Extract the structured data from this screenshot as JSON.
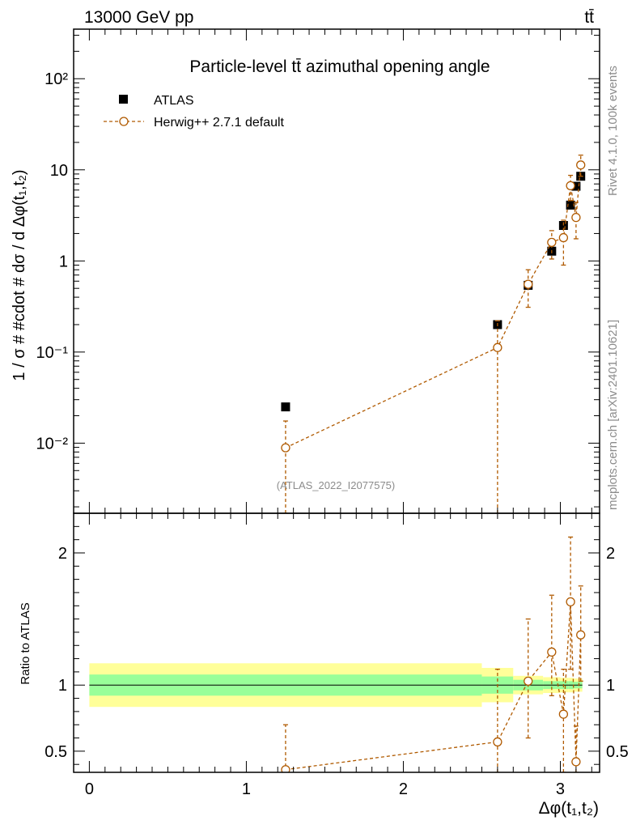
{
  "header": {
    "energy_label": "13000 GeV pp",
    "process_label": "tt̄"
  },
  "side_labels": {
    "rivet": "Rivet 4.1.0,  100k events",
    "source": "mcplots.cern.ch [arXiv:2401.10621]"
  },
  "colors": {
    "herwig": "#b05a00",
    "data": "#000000",
    "band_inner": "#99ff99",
    "band_outer": "#ffff99"
  },
  "chart_data": [
    {
      "type": "scatter",
      "title": "Particle-level tt̄ azimuthal opening angle",
      "analysis_id": "(ATLAS_2022_I2077575)",
      "ylabel": "1 / σ # #cdot # dσ / d Δφ(t₁,t₂)",
      "xlabel": "Δφ(t₁,t₂)",
      "yscale": "log",
      "xlim": [
        -0.1,
        3.25
      ],
      "ylim": [
        0.0017,
        350
      ],
      "y_ticks": [
        {
          "value": 0.01,
          "label": "10⁻²"
        },
        {
          "value": 0.1,
          "label": "10⁻¹"
        },
        {
          "value": 1,
          "label": "1"
        },
        {
          "value": 10,
          "label": "10"
        },
        {
          "value": 100,
          "label": "10²"
        }
      ],
      "legend": {
        "position": "top-left",
        "entries": [
          "ATLAS",
          "Herwig++ 2.7.1 default"
        ]
      },
      "series": [
        {
          "name": "ATLAS",
          "marker": "filled-square",
          "points": [
            {
              "x": 1.25,
              "y": 0.025
            },
            {
              "x": 2.6,
              "y": 0.2
            },
            {
              "x": 2.795,
              "y": 0.54
            },
            {
              "x": 2.945,
              "y": 1.28
            },
            {
              "x": 3.02,
              "y": 2.45
            },
            {
              "x": 3.065,
              "y": 4.1
            },
            {
              "x": 3.1,
              "y": 6.6
            },
            {
              "x": 3.13,
              "y": 8.5
            }
          ]
        },
        {
          "name": "Herwig++ 2.7.1 default",
          "marker": "open-circle",
          "line": "dashed",
          "points": [
            {
              "x": 1.25,
              "y": 0.0089,
              "ylo": 0.0017,
              "yhi": 0.0175
            },
            {
              "x": 2.6,
              "y": 0.112,
              "ylo": 0.0017,
              "yhi": 0.22
            },
            {
              "x": 2.795,
              "y": 0.555,
              "ylo": 0.31,
              "yhi": 0.8
            },
            {
              "x": 2.945,
              "y": 1.6,
              "ylo": 1.05,
              "yhi": 2.15
            },
            {
              "x": 3.02,
              "y": 1.8,
              "ylo": 0.9,
              "yhi": 2.8
            },
            {
              "x": 3.065,
              "y": 6.7,
              "ylo": 4.6,
              "yhi": 8.7
            },
            {
              "x": 3.1,
              "y": 3.0,
              "ylo": 1.75,
              "yhi": 4.4
            },
            {
              "x": 3.13,
              "y": 11.3,
              "ylo": 8.5,
              "yhi": 14.5
            }
          ]
        }
      ]
    },
    {
      "type": "scatter",
      "title": "",
      "ylabel": "Ratio to ATLAS",
      "xlabel": "Δφ(t₁,t₂)",
      "xlim": [
        -0.1,
        3.25
      ],
      "ylim": [
        0.34,
        2.3
      ],
      "x_ticks": [
        {
          "value": 0,
          "label": "0"
        },
        {
          "value": 1,
          "label": "1"
        },
        {
          "value": 2,
          "label": "2"
        },
        {
          "value": 3,
          "label": "3"
        }
      ],
      "y_ticks": [
        {
          "value": 0.5,
          "label": "0.5"
        },
        {
          "value": 1,
          "label": "1"
        },
        {
          "value": 2,
          "label": "2"
        }
      ],
      "reference_line": 1,
      "uncertainty_bands": [
        {
          "x0": 0.0,
          "x1": 2.5,
          "inner": [
            0.92,
            1.08
          ],
          "outer": [
            0.835,
            1.165
          ]
        },
        {
          "x0": 2.5,
          "x1": 2.7,
          "inner": [
            0.935,
            1.065
          ],
          "outer": [
            0.87,
            1.13
          ]
        },
        {
          "x0": 2.7,
          "x1": 2.89,
          "inner": [
            0.96,
            1.04
          ],
          "outer": [
            0.93,
            1.07
          ]
        },
        {
          "x0": 2.89,
          "x1": 3.0,
          "inner": [
            0.97,
            1.03
          ],
          "outer": [
            0.94,
            1.06
          ]
        },
        {
          "x0": 3.0,
          "x1": 3.05,
          "inner": [
            0.97,
            1.03
          ],
          "outer": [
            0.945,
            1.055
          ]
        },
        {
          "x0": 3.05,
          "x1": 3.085,
          "inner": [
            0.97,
            1.03
          ],
          "outer": [
            0.945,
            1.055
          ]
        },
        {
          "x0": 3.085,
          "x1": 3.115,
          "inner": [
            0.975,
            1.025
          ],
          "outer": [
            0.95,
            1.05
          ]
        },
        {
          "x0": 3.115,
          "x1": 3.14,
          "inner": [
            0.975,
            1.025
          ],
          "outer": [
            0.95,
            1.05
          ]
        }
      ],
      "series": [
        {
          "name": "Herwig++ 2.7.1 default",
          "marker": "open-circle",
          "line": "dashed",
          "points": [
            {
              "x": 1.25,
              "y": 0.36,
              "ylo": 0.34,
              "yhi": 0.7
            },
            {
              "x": 2.6,
              "y": 0.57,
              "ylo": 0.34,
              "yhi": 1.12
            },
            {
              "x": 2.795,
              "y": 1.03,
              "ylo": 0.6,
              "yhi": 1.5
            },
            {
              "x": 2.945,
              "y": 1.25,
              "ylo": 0.92,
              "yhi": 1.68
            },
            {
              "x": 3.02,
              "y": 0.78,
              "ylo": 0.34,
              "yhi": 1.12
            },
            {
              "x": 3.065,
              "y": 1.63,
              "ylo": 1.12,
              "yhi": 2.12
            },
            {
              "x": 3.1,
              "y": 0.42,
              "ylo": 0.34,
              "yhi": 0.69
            },
            {
              "x": 3.13,
              "y": 1.38,
              "ylo": 1.03,
              "yhi": 1.75
            }
          ]
        }
      ]
    }
  ]
}
